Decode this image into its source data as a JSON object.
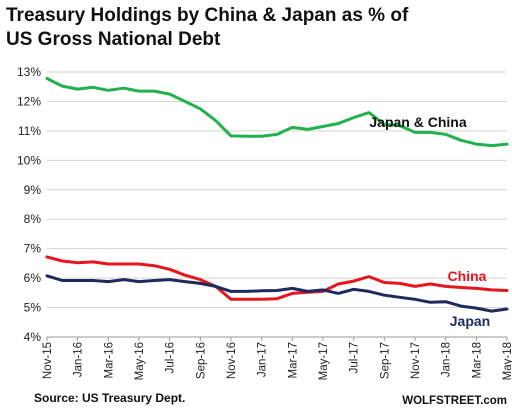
{
  "chart_data": {
    "type": "line",
    "title_line1": "Treasury Holdings by China & Japan as % of",
    "title_line2": "US Gross National Debt",
    "ylim": [
      4,
      13
    ],
    "yticks": [
      "4%",
      "5%",
      "6%",
      "7%",
      "8%",
      "9%",
      "10%",
      "11%",
      "12%",
      "13%"
    ],
    "ytick_values": [
      4,
      5,
      6,
      7,
      8,
      9,
      10,
      11,
      12,
      13
    ],
    "grid": true,
    "x": [
      "Nov-15",
      "Dec-15",
      "Jan-16",
      "Feb-16",
      "Mar-16",
      "Apr-16",
      "May-16",
      "Jun-16",
      "Jul-16",
      "Aug-16",
      "Sep-16",
      "Oct-16",
      "Nov-16",
      "Dec-16",
      "Jan-17",
      "Feb-17",
      "Mar-17",
      "Apr-17",
      "May-17",
      "Jun-17",
      "Jul-17",
      "Aug-17",
      "Sep-17",
      "Oct-17",
      "Nov-17",
      "Dec-17",
      "Jan-18",
      "Feb-18",
      "Mar-18",
      "Apr-18",
      "May-18"
    ],
    "xtick_labels": [
      "Nov-15",
      "Jan-16",
      "Mar-16",
      "May-16",
      "Jul-16",
      "Sep-16",
      "Nov-16",
      "Jan-17",
      "Mar-17",
      "May-17",
      "Jul-17",
      "Sep-17",
      "Nov-17",
      "Jan-18",
      "Mar-18",
      "May-18"
    ],
    "series": [
      {
        "name": "Japan & China",
        "color": "#22b14c",
        "values": [
          12.78,
          12.52,
          12.42,
          12.48,
          12.38,
          12.45,
          12.35,
          12.35,
          12.25,
          12.0,
          11.75,
          11.35,
          10.83,
          10.82,
          10.82,
          10.88,
          11.12,
          11.05,
          11.15,
          11.25,
          11.45,
          11.62,
          11.22,
          11.18,
          10.95,
          10.95,
          10.88,
          10.68,
          10.55,
          10.5,
          10.55
        ]
      },
      {
        "name": "China",
        "color": "#e8141e",
        "values": [
          6.72,
          6.58,
          6.52,
          6.55,
          6.48,
          6.48,
          6.48,
          6.42,
          6.3,
          6.1,
          5.95,
          5.72,
          5.28,
          5.28,
          5.28,
          5.3,
          5.48,
          5.52,
          5.55,
          5.8,
          5.9,
          6.05,
          5.85,
          5.82,
          5.72,
          5.8,
          5.72,
          5.68,
          5.65,
          5.6,
          5.58
        ]
      },
      {
        "name": "Japan",
        "color": "#1f2a5c",
        "values": [
          6.08,
          5.92,
          5.92,
          5.92,
          5.88,
          5.95,
          5.88,
          5.92,
          5.95,
          5.88,
          5.82,
          5.72,
          5.55,
          5.55,
          5.57,
          5.58,
          5.65,
          5.55,
          5.6,
          5.48,
          5.62,
          5.55,
          5.42,
          5.35,
          5.28,
          5.18,
          5.2,
          5.05,
          4.98,
          4.88,
          4.95
        ]
      }
    ],
    "source": "Source: US Treasury Dept.",
    "brand": "WOLFSTREET.com"
  }
}
